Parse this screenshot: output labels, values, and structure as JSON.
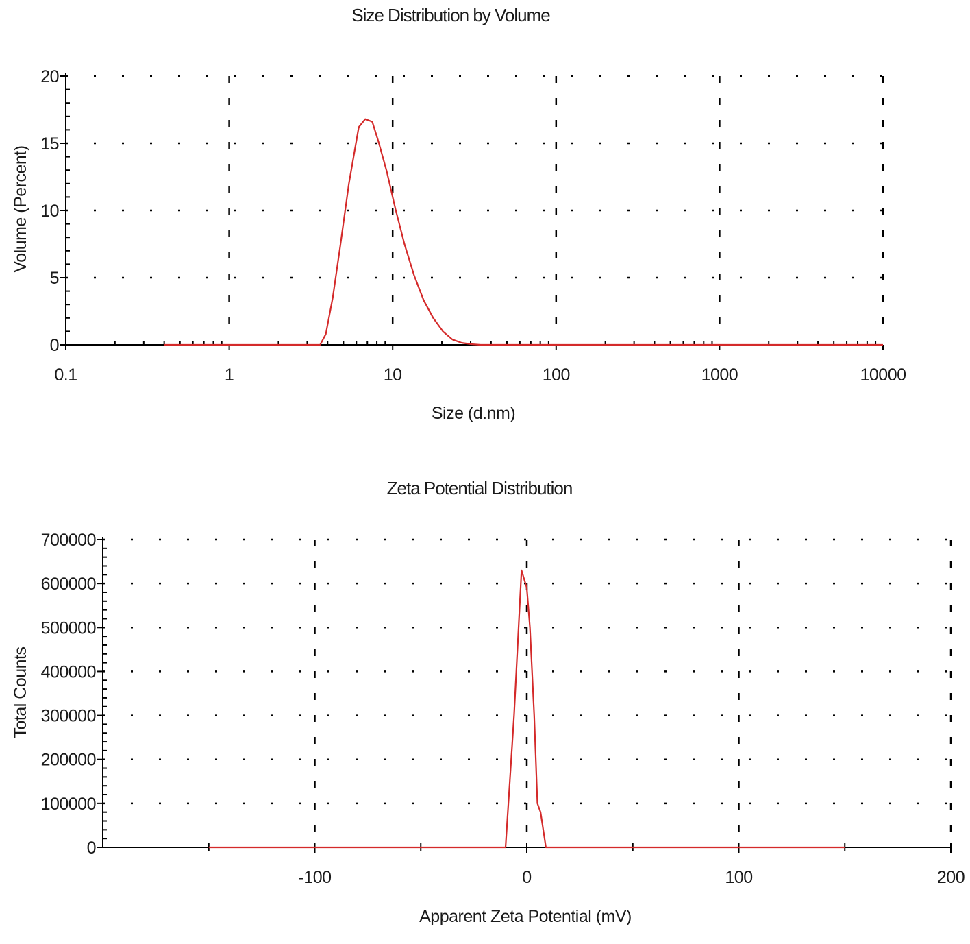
{
  "colors": {
    "series": "#d42a2a",
    "axis": "#000000",
    "grid": "#000000",
    "text": "#1a1a1a",
    "background": "#ffffff"
  },
  "chart_data": [
    {
      "type": "line",
      "title": "Size Distribution by Volume",
      "xlabel": "Size (d.nm)",
      "ylabel": "Volume (Percent)",
      "xscale": "log",
      "xlim": [
        0.1,
        10000
      ],
      "ylim": [
        0,
        20
      ],
      "xticks": [
        0.1,
        1,
        10,
        100,
        1000,
        10000
      ],
      "xtick_labels": [
        "0.1",
        "1",
        "10",
        "100",
        "1000",
        "10000"
      ],
      "yticks": [
        0,
        5,
        10,
        15,
        20
      ],
      "ytick_labels": [
        "0",
        "5",
        "10",
        "15",
        "20"
      ],
      "grid": true,
      "legend": "none",
      "series": [
        {
          "x": [
            0.4,
            3.6,
            3.9,
            4.3,
            4.8,
            5.4,
            6.2,
            6.8,
            7.5,
            8.2,
            9.2,
            10.4,
            11.8,
            13.5,
            15.5,
            17.7,
            20.3,
            23.2,
            26.5,
            30.3,
            34.5,
            40,
            100,
            1000,
            10000
          ],
          "y": [
            0,
            0,
            0.8,
            3.5,
            7.5,
            12,
            16.2,
            16.8,
            16.6,
            15.1,
            12.9,
            10.1,
            7.5,
            5.2,
            3.3,
            2.0,
            1.0,
            0.4,
            0.15,
            0.05,
            0,
            0,
            0,
            0,
            0
          ]
        }
      ]
    },
    {
      "type": "line",
      "title": "Zeta Potential Distribution",
      "xlabel": "Apparent Zeta Potential (mV)",
      "ylabel": "Total Counts",
      "xlim": [
        -200,
        200
      ],
      "ylim": [
        0,
        700000
      ],
      "xticks": [
        -100,
        0,
        100,
        200
      ],
      "xtick_labels": [
        "-100",
        "0",
        "100",
        "200"
      ],
      "yticks": [
        0,
        100000,
        200000,
        300000,
        400000,
        500000,
        600000,
        700000
      ],
      "ytick_labels": [
        "0",
        "100000",
        "200000",
        "300000",
        "400000",
        "500000",
        "600000",
        "700000"
      ],
      "grid": true,
      "legend": "none",
      "series": [
        {
          "x": [
            -150,
            -10,
            -6,
            -2.5,
            0,
            1.5,
            3.5,
            5,
            6.5,
            9,
            150
          ],
          "y": [
            0,
            0,
            300000,
            630000,
            590000,
            500000,
            300000,
            100000,
            80000,
            0,
            0
          ]
        }
      ]
    }
  ]
}
